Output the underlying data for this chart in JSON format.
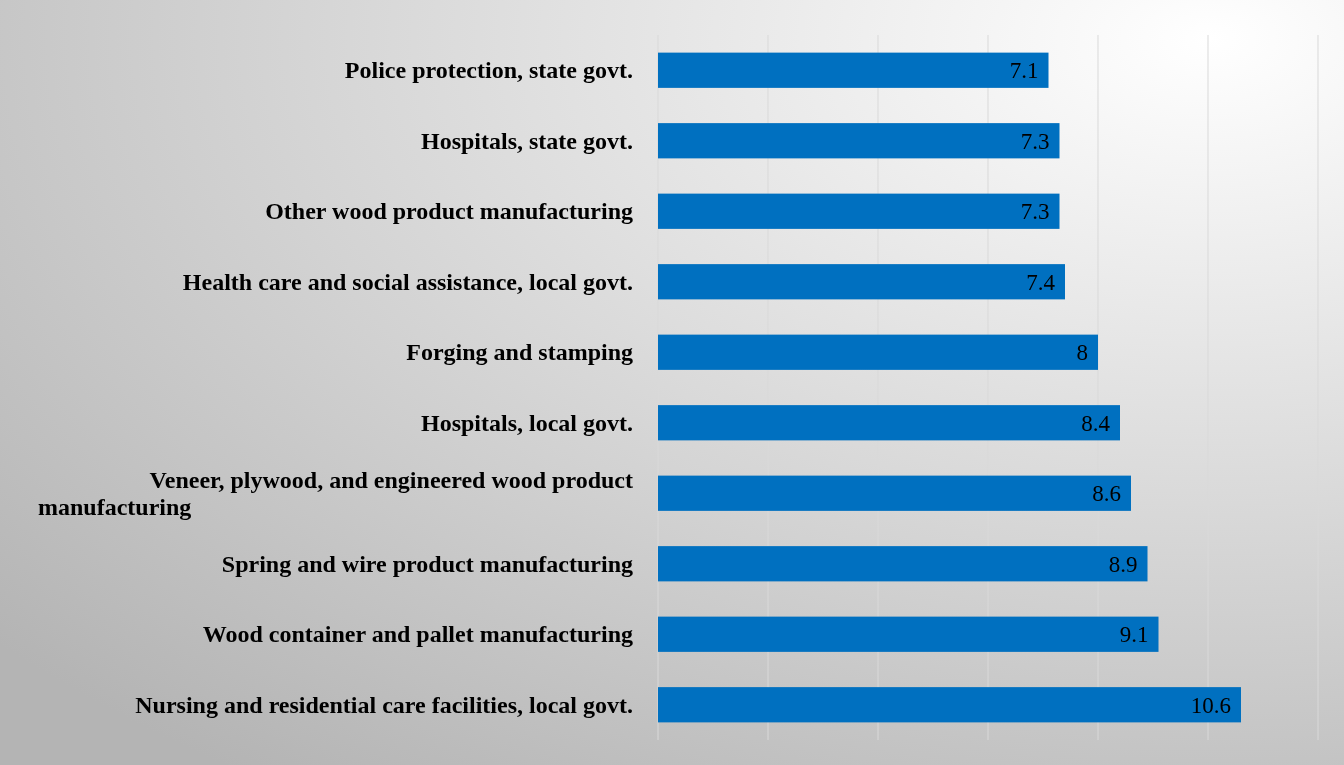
{
  "chart_data": {
    "type": "bar",
    "orientation": "horizontal",
    "categories": [
      "Police protection, state govt.",
      "Hospitals, state govt.",
      "Other wood product manufacturing",
      "Health care and social assistance, local govt.",
      "Forging and stamping",
      "Hospitals, local govt.",
      "Veneer, plywood, and engineered wood product manufacturing",
      "Spring and wire product manufacturing",
      "Wood container and pallet manufacturing",
      "Nursing and residential care facilities, local govt."
    ],
    "values": [
      7.1,
      7.3,
      7.3,
      7.4,
      8,
      8.4,
      8.6,
      8.9,
      9.1,
      10.6
    ],
    "color": "#0070c0",
    "xlim": [
      0,
      12
    ],
    "xticks": [
      {
        "value": 0,
        "label": null
      },
      {
        "value": 2,
        "label": null
      },
      {
        "value": 4,
        "label": null
      },
      {
        "value": 6,
        "label": null
      },
      {
        "value": 8,
        "label": null
      },
      {
        "value": 10,
        "label": null
      },
      {
        "value": 12,
        "label": null
      }
    ],
    "tick_labels": "y",
    "grid": "x",
    "data_labels": true
  }
}
